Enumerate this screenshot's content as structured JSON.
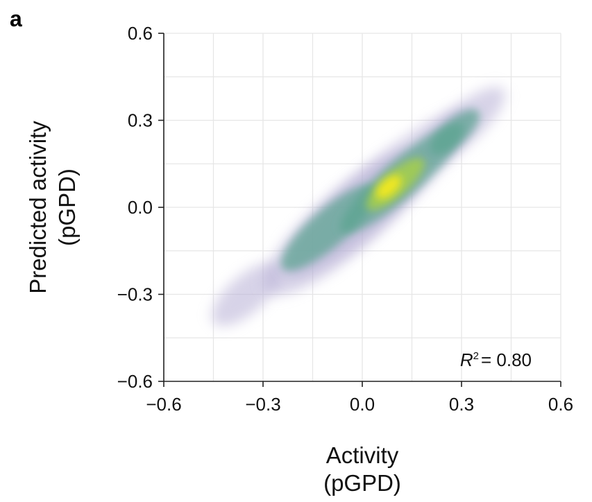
{
  "panel_label": "a",
  "chart_data": {
    "type": "scatter",
    "style": "density",
    "xlabel_lines": [
      "Activity",
      "(pGPD)"
    ],
    "ylabel_lines": [
      "Predicted activity",
      "(pGPD)"
    ],
    "xlim": [
      -0.6,
      0.6
    ],
    "ylim": [
      -0.6,
      0.6
    ],
    "xticks": [
      -0.6,
      -0.3,
      0.0,
      0.3,
      0.6
    ],
    "yticks": [
      -0.6,
      -0.3,
      0.0,
      0.3,
      0.6
    ],
    "xtick_labels": [
      "−0.6",
      "−0.3",
      "0.0",
      "0.3",
      "0.6"
    ],
    "ytick_labels": [
      "−0.6",
      "−0.3",
      "0.0",
      "0.3",
      "0.6"
    ],
    "grid": true,
    "annotation": {
      "r_symbol": "R",
      "exponent": "2",
      "value_text": "= 0.80",
      "r_squared": 0.8
    },
    "density_regions": [
      {
        "cx": -0.35,
        "cy": -0.3,
        "along": 0.14,
        "across": 0.06,
        "level": "low"
      },
      {
        "cx": -0.05,
        "cy": -0.05,
        "along": 0.34,
        "across": 0.1,
        "level": "low"
      },
      {
        "cx": 0.05,
        "cy": 0.05,
        "along": 0.4,
        "across": 0.09,
        "level": "low"
      },
      {
        "cx": 0.3,
        "cy": 0.28,
        "along": 0.18,
        "across": 0.06,
        "level": "low"
      },
      {
        "cx": -0.1,
        "cy": -0.07,
        "along": 0.2,
        "across": 0.06,
        "level": "medium"
      },
      {
        "cx": 0.12,
        "cy": 0.1,
        "along": 0.26,
        "across": 0.06,
        "level": "medium"
      },
      {
        "cx": 0.28,
        "cy": 0.26,
        "along": 0.1,
        "across": 0.04,
        "level": "medium"
      },
      {
        "cx": 0.1,
        "cy": 0.08,
        "along": 0.12,
        "across": 0.04,
        "level": "high"
      },
      {
        "cx": 0.08,
        "cy": 0.07,
        "along": 0.05,
        "across": 0.025,
        "level": "peak"
      }
    ],
    "colors": {
      "low": "#b7aed6",
      "medium": "#5aa48f",
      "high": "#a6cf4a",
      "peak": "#f3e91c",
      "grid": "#e6e6e6",
      "axis": "#222222"
    }
  }
}
